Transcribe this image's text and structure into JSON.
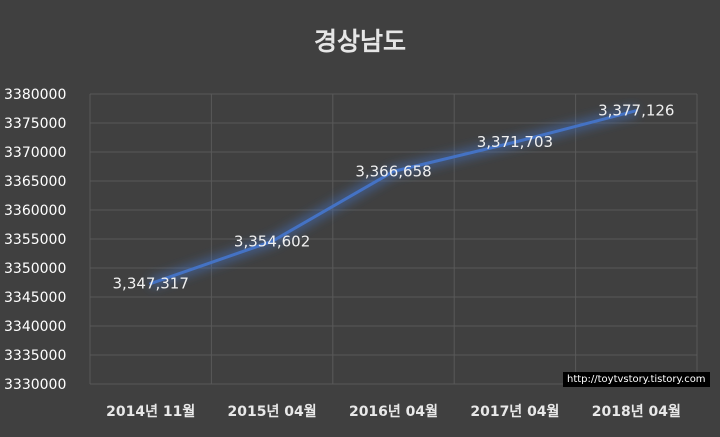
{
  "chart_data": {
    "type": "line",
    "title": "경상남도",
    "categories": [
      "2014년 11월",
      "2015년 04월",
      "2016년 04월",
      "2017년 04월",
      "2018년 04월"
    ],
    "values": [
      3347317,
      3354602,
      3366658,
      3371703,
      3377126
    ],
    "data_labels": [
      "3,347,317",
      "3,354,602",
      "3,366,658",
      "3,371,703",
      "3,377,126"
    ],
    "y_ticks": [
      "3330000",
      "3335000",
      "3340000",
      "3345000",
      "3350000",
      "3355000",
      "3360000",
      "3365000",
      "3370000",
      "3375000",
      "3380000"
    ],
    "ylim": [
      3330000,
      3380000
    ],
    "grid": true,
    "legend": "none",
    "colors": {
      "background": "#404040",
      "line": "#4472C4",
      "grid": "#595959",
      "text": "#e6e6e6"
    }
  },
  "watermark": "http://toytvstory.tistory.com"
}
